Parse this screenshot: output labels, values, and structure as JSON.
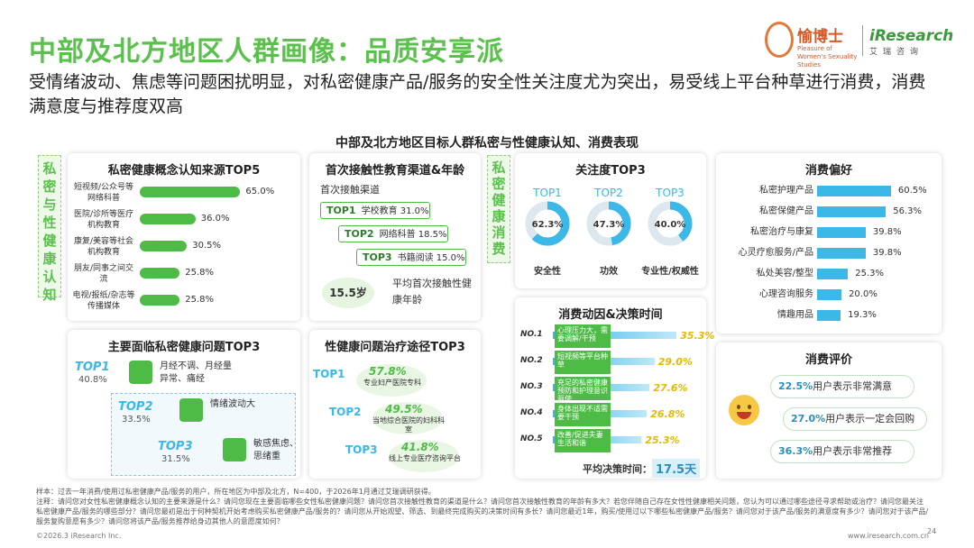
{
  "header": {
    "title": "中部及北方地区人群画像：品质安享派",
    "subtitle": "受情绪波动、焦虑等问题困扰明显，对私密健康产品/服务的安全性关注度尤为突出，易受线上平台种草进行消费，消费满意度与推荐度双高"
  },
  "logos": {
    "yu_name": "愉博士",
    "yu_tag": "Pleasure of Women's Sexuality Studies",
    "ir_name": "iResearch",
    "ir_cn": "艾瑞咨询"
  },
  "chart_title": "中部及北方地区目标人群私密与性健康认知、消费表现",
  "side_labels": {
    "left": "私密与性健康认知",
    "mid": "私密健康消费"
  },
  "panels": {
    "source": {
      "title": "私密健康概念认知来源TOP5"
    },
    "first_channel": {
      "title": "首次接触性教育渠道&年龄",
      "subtitle": "首次接触渠道",
      "age": "15.5岁",
      "age_label": "平均首次接触性健康年龄"
    },
    "attention": {
      "title": "关注度TOP3"
    },
    "preference": {
      "title": "消费偏好"
    },
    "problems": {
      "title": "主要面临私密健康问题TOP3"
    },
    "treatment": {
      "title": "性健康问题治疗途径TOP3"
    },
    "motive": {
      "title": "消费动因&决策时间",
      "avg_label": "平均决策时间：",
      "avg_value": "17.5天"
    },
    "evaluation": {
      "title": "消费评价"
    }
  },
  "chart_data": [
    {
      "type": "bar",
      "title": "私密健康概念认知来源TOP5",
      "categories": [
        "短视频/公众号等网络科普",
        "医院/诊所等医疗机构教育",
        "康复/美容等社会机构教育",
        "朋友/同事之间交流",
        "电视/报纸/杂志等传播媒体"
      ],
      "values": [
        65.0,
        36.0,
        30.5,
        25.8,
        25.8
      ],
      "labels": [
        "65.0%",
        "36.0%",
        "30.5%",
        "25.8%",
        "25.8%"
      ],
      "xlim": [
        0,
        70
      ]
    },
    {
      "type": "table",
      "title": "首次接触性教育渠道",
      "rows": [
        {
          "rank": "TOP1",
          "name": "学校教育",
          "value": "31.0%"
        },
        {
          "rank": "TOP2",
          "name": "网络科普",
          "value": "18.5%"
        },
        {
          "rank": "TOP3",
          "name": "书籍阅读",
          "value": "15.0%"
        }
      ]
    },
    {
      "type": "pie",
      "title": "关注度TOP3",
      "series": [
        {
          "rank": "TOP1",
          "label": "安全性",
          "value": 62.3,
          "text": "62.3%"
        },
        {
          "rank": "TOP2",
          "label": "功效",
          "value": 47.3,
          "text": "47.3%"
        },
        {
          "rank": "TOP3",
          "label": "专业性/权威性",
          "value": 40.0,
          "text": "40.0%"
        }
      ]
    },
    {
      "type": "bar",
      "title": "消费偏好",
      "categories": [
        "私密护理产品",
        "私密保健产品",
        "私密治疗与康复",
        "心灵疗愈服务/产品",
        "私处美容/整型",
        "心理咨询服务",
        "情趣用品"
      ],
      "values": [
        60.5,
        56.3,
        39.8,
        39.8,
        25.3,
        20.0,
        19.3
      ],
      "labels": [
        "60.5%",
        "56.3%",
        "39.8%",
        "39.8%",
        "25.3%",
        "20.0%",
        "19.3%"
      ],
      "xlim": [
        0,
        65
      ]
    },
    {
      "type": "table",
      "title": "主要面临私密健康问题TOP3",
      "rows": [
        {
          "rank": "TOP1",
          "value": "40.8%",
          "name": "月经不调、月经量异常、痛经"
        },
        {
          "rank": "TOP2",
          "value": "33.5%",
          "name": "情绪波动大"
        },
        {
          "rank": "TOP3",
          "value": "31.5%",
          "name": "敏感焦虑、思绪重"
        }
      ]
    },
    {
      "type": "table",
      "title": "性健康问题治疗途径TOP3",
      "rows": [
        {
          "rank": "TOP1",
          "value": "57.8%",
          "name": "专业妇产医院专科"
        },
        {
          "rank": "TOP2",
          "value": "49.5%",
          "name": "当地综合医院的妇科科室"
        },
        {
          "rank": "TOP3",
          "value": "41.8%",
          "name": "线上专业医疗咨询平台"
        }
      ]
    },
    {
      "type": "bar",
      "title": "消费动因&决策时间",
      "categories": [
        "NO.1",
        "NO.2",
        "NO.3",
        "NO.4",
        "NO.5"
      ],
      "names": [
        "心理压力大，需要调解/干预",
        "短视频等平台种草",
        "充足的私密健康预防和护理意识驱使",
        "身体出现不适需要干预",
        "改善/促进夫妻生活和谐"
      ],
      "values": [
        35.3,
        29.0,
        27.6,
        26.8,
        25.3
      ],
      "labels": [
        "35.3%",
        "29.0%",
        "27.6%",
        "26.8%",
        "25.3%"
      ]
    },
    {
      "type": "table",
      "title": "消费评价",
      "rows": [
        {
          "value": "22.5%",
          "text": "用户表示非常满意"
        },
        {
          "value": "27.0%",
          "text": "用户表示一定会回购"
        },
        {
          "value": "36.3%",
          "text": "用户表示非常推荐"
        }
      ]
    }
  ],
  "notes": {
    "sample": "样本：过去一年消费/使用过私密健康产品/服务的用户，所在地区为中部及北方，N=400，于2026年1月通过艾瑞调研获得。",
    "note": "注释：请问您对女性私密健康概念认知的主要来源是什么？请问您现在主要面临哪些女性私密健康问题？请问您首次接触性教育的渠道是什么？请问您首次接触性教育的年龄有多大？若您伴随自己存在女性性健康相关问题，您认为可以通过哪些途径寻求帮助或治疗？请问您最关注私密健康产品/服务的哪些部分？请问您最初是出于何种契机开始考虑购买私密健康产品/服务的？请问您从开始观望、筛选、到最终完成购买的决策时间有多长？请问您最近1年，购买/使用过以下哪些私密健康产品/服务？请问您对于该产品/服务的满意度有多少？请问您对于该产品/服务复购意愿有多少？请问您将该产品/服务推荐给身边其他人的意愿度如何？",
    "copyright": "©2026.3 iResearch Inc.",
    "site": "www.iresearch.com.cn",
    "page": "24"
  },
  "colors": {
    "green": "#4dbb45",
    "blue": "#3bb7e8",
    "title_green": "#5cc04e"
  }
}
